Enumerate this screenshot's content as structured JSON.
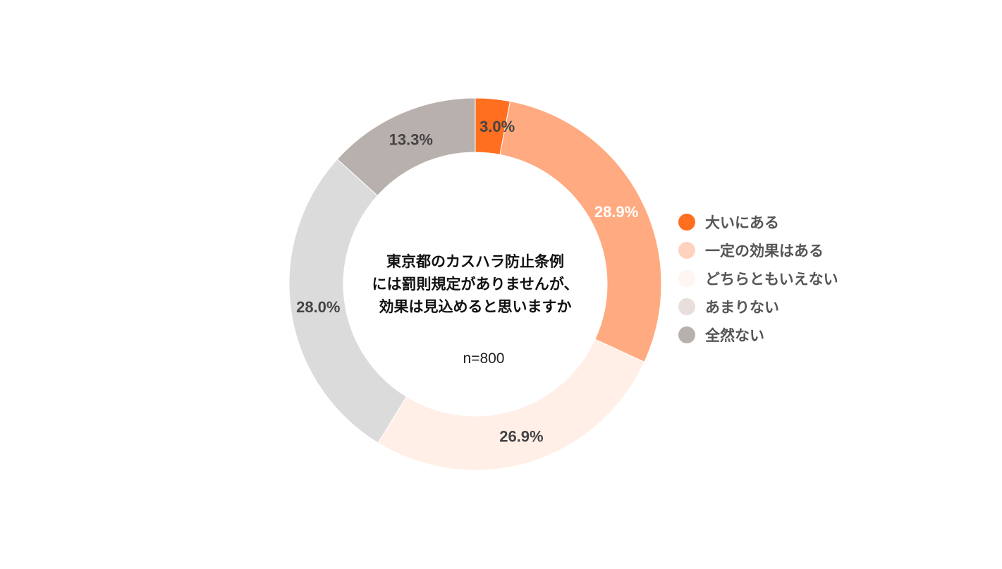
{
  "chart_data": {
    "type": "pie",
    "subtype": "donut",
    "center_title": [
      "東京都のカスハラ防止条例",
      "には罰則規定がありませんが、",
      "効果は見込めると思いますか"
    ],
    "sample_size": "n=800",
    "legend_position": "right",
    "slices": [
      {
        "name": "大いにある",
        "value": 3.0,
        "label": "3.0%",
        "color": "#FF6F1F",
        "label_color": "#444444"
      },
      {
        "name": "一定の効果はある",
        "value": 28.9,
        "label": "28.9%",
        "color": "#FFAA80",
        "label_color": "#FFFFFF"
      },
      {
        "name": "どちらともいえない",
        "value": 26.9,
        "label": "26.9%",
        "color": "#FFEFE7",
        "label_color": "#444444"
      },
      {
        "name": "あまりない",
        "value": 28.0,
        "label": "28.0%",
        "color": "#DBDBDB",
        "label_color": "#444444"
      },
      {
        "name": "全然ない",
        "value": 13.3,
        "label": "13.3%",
        "color": "#B8B0AC",
        "label_color": "#444444"
      }
    ],
    "legend_swatch_colors": [
      "#FF6F1F",
      "#FFD2BF",
      "#FFF6F2",
      "#E8DEDC",
      "#B8B0AC"
    ]
  }
}
